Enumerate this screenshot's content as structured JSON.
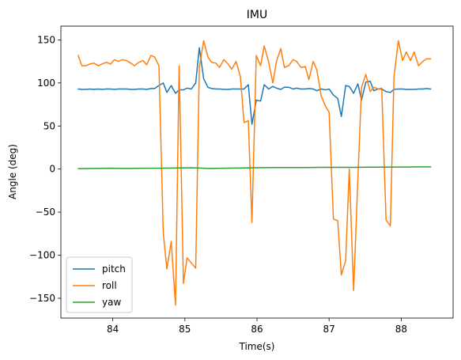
{
  "chart_data": {
    "type": "line",
    "title": "IMU",
    "xlabel": "Time(s)",
    "ylabel": "Angle (deg)",
    "xlim": [
      83.28,
      88.72
    ],
    "ylim": [
      -173,
      166
    ],
    "x_ticks": [
      84,
      85,
      86,
      87,
      88
    ],
    "y_ticks": [
      -150,
      -100,
      -50,
      0,
      50,
      100,
      150
    ],
    "x_tick_labels": [
      "84",
      "85",
      "86",
      "87",
      "88"
    ],
    "y_tick_labels": [
      "−150",
      "−100",
      "−50",
      "0",
      "50",
      "100",
      "150"
    ],
    "grid": false,
    "legend_position": "lower-left",
    "series": [
      {
        "name": "pitch",
        "color": "#1f77b4",
        "x": [
          83.52,
          83.57,
          83.63,
          83.68,
          83.74,
          83.8,
          83.85,
          83.91,
          83.97,
          84.02,
          84.08,
          84.13,
          84.19,
          84.25,
          84.3,
          84.36,
          84.42,
          84.47,
          84.53,
          84.58,
          84.64,
          84.7,
          84.75,
          84.81,
          84.87,
          84.92,
          84.98,
          85.03,
          85.09,
          85.15,
          85.2,
          85.26,
          85.32,
          85.37,
          85.43,
          85.48,
          85.54,
          85.6,
          85.65,
          85.71,
          85.77,
          85.82,
          85.88,
          85.93,
          85.99,
          86.05,
          86.1,
          86.16,
          86.22,
          86.27,
          86.33,
          86.38,
          86.44,
          86.5,
          86.55,
          86.61,
          86.67,
          86.72,
          86.78,
          86.83,
          86.89,
          86.95,
          87.0,
          87.06,
          87.12,
          87.17,
          87.23,
          87.28,
          87.34,
          87.4,
          87.45,
          87.51,
          87.57,
          87.62,
          87.68,
          87.73,
          87.79,
          87.85,
          87.9,
          87.96,
          88.02,
          88.07,
          88.13,
          88.18,
          88.24,
          88.3,
          88.35,
          88.41
        ],
        "y": [
          93,
          92.5,
          92.5,
          93,
          92.5,
          93,
          92.5,
          93,
          93,
          92.5,
          93,
          93,
          93,
          92.5,
          92.5,
          93,
          93,
          92.5,
          93.5,
          93.5,
          97,
          100,
          89,
          97,
          88,
          92,
          92,
          94,
          93,
          100,
          141,
          105,
          95,
          93.5,
          93,
          93,
          92.5,
          92.5,
          93,
          93,
          93,
          93,
          98,
          52,
          80,
          79,
          98,
          93,
          96,
          94,
          92.5,
          95,
          95,
          93,
          94,
          93,
          93,
          93.5,
          93,
          91,
          93,
          92,
          93,
          86,
          82,
          61,
          97,
          96,
          88,
          99,
          80,
          101,
          102,
          91,
          93,
          93,
          90,
          89,
          92.5,
          93,
          93,
          92.5,
          92.5,
          92.5,
          93,
          93,
          93.5,
          93
        ]
      },
      {
        "name": "roll",
        "color": "#ff7f0e",
        "x": [
          83.52,
          83.57,
          83.63,
          83.68,
          83.74,
          83.8,
          83.85,
          83.91,
          83.97,
          84.02,
          84.08,
          84.13,
          84.19,
          84.25,
          84.3,
          84.36,
          84.42,
          84.47,
          84.53,
          84.58,
          84.64,
          84.7,
          84.75,
          84.81,
          84.87,
          84.92,
          84.98,
          85.03,
          85.09,
          85.15,
          85.2,
          85.26,
          85.32,
          85.37,
          85.43,
          85.48,
          85.54,
          85.6,
          85.65,
          85.71,
          85.77,
          85.82,
          85.88,
          85.93,
          85.99,
          86.05,
          86.1,
          86.16,
          86.22,
          86.27,
          86.33,
          86.38,
          86.44,
          86.5,
          86.55,
          86.61,
          86.67,
          86.72,
          86.78,
          86.83,
          86.89,
          86.95,
          87.0,
          87.06,
          87.12,
          87.17,
          87.23,
          87.28,
          87.34,
          87.4,
          87.45,
          87.51,
          87.57,
          87.62,
          87.68,
          87.73,
          87.79,
          87.85,
          87.9,
          87.96,
          88.02,
          88.07,
          88.13,
          88.18,
          88.24,
          88.3,
          88.35,
          88.41
        ],
        "y": [
          132,
          120,
          120,
          122,
          123,
          120,
          122,
          124,
          122,
          127,
          125,
          127,
          126,
          123,
          120,
          124,
          126,
          121,
          132,
          130,
          120,
          -74,
          -116,
          -84,
          -158,
          120,
          -133,
          -103,
          -109,
          -115,
          118,
          149,
          130,
          124,
          123,
          118,
          127,
          122,
          116,
          125,
          107,
          54,
          56,
          -62,
          132,
          120,
          143,
          125,
          100,
          125,
          140,
          118,
          120,
          127,
          125,
          118,
          119,
          104,
          125,
          115,
          85,
          73,
          66,
          -58,
          -60,
          -123,
          -106,
          0,
          -141,
          -10,
          95,
          110,
          90,
          95,
          93,
          94,
          -59,
          -66,
          107,
          149,
          126,
          136,
          126,
          136,
          120,
          125,
          128,
          128
        ]
      },
      {
        "name": "yaw",
        "color": "#2ca02c",
        "x": [
          83.52,
          83.74,
          83.97,
          84.19,
          84.42,
          84.64,
          84.87,
          85.09,
          85.32,
          85.54,
          85.77,
          85.99,
          86.22,
          86.44,
          86.67,
          86.89,
          87.12,
          87.34,
          87.57,
          87.79,
          88.02,
          88.24,
          88.41
        ],
        "y": [
          0.5,
          0.7,
          1.0,
          0.8,
          1.0,
          1.0,
          1.2,
          1.5,
          0.8,
          1.0,
          1.2,
          1.6,
          1.8,
          1.8,
          1.8,
          2.0,
          2.0,
          2.0,
          2.2,
          2.2,
          2.4,
          2.6,
          2.6
        ]
      }
    ]
  }
}
